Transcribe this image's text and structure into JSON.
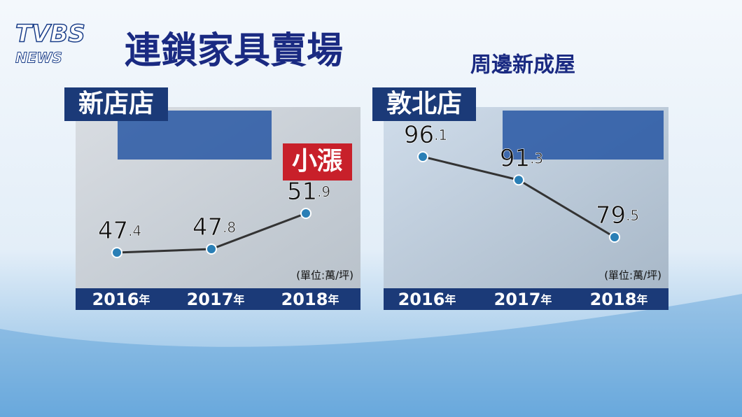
{
  "logo": {
    "main": "TVBS",
    "sub": "NEWS"
  },
  "title": "連鎖家具賣場",
  "subtitle": "周邊新成屋",
  "chart_data": [
    {
      "type": "line",
      "title": "新店店",
      "categories": [
        "2016年",
        "2017年",
        "2018年"
      ],
      "values": [
        47.4,
        47.8,
        51.9
      ],
      "color": "#2a7fb6",
      "line_color": "#333333",
      "annotation": "小漲",
      "unit": "(單位:萬/坪)"
    },
    {
      "type": "line",
      "title": "敦北店",
      "categories": [
        "2016年",
        "2017年",
        "2018年"
      ],
      "values": [
        96.1,
        91.3,
        79.5
      ],
      "color": "#2a7fb6",
      "line_color": "#333333",
      "unit": "(單位:萬/坪)"
    }
  ]
}
